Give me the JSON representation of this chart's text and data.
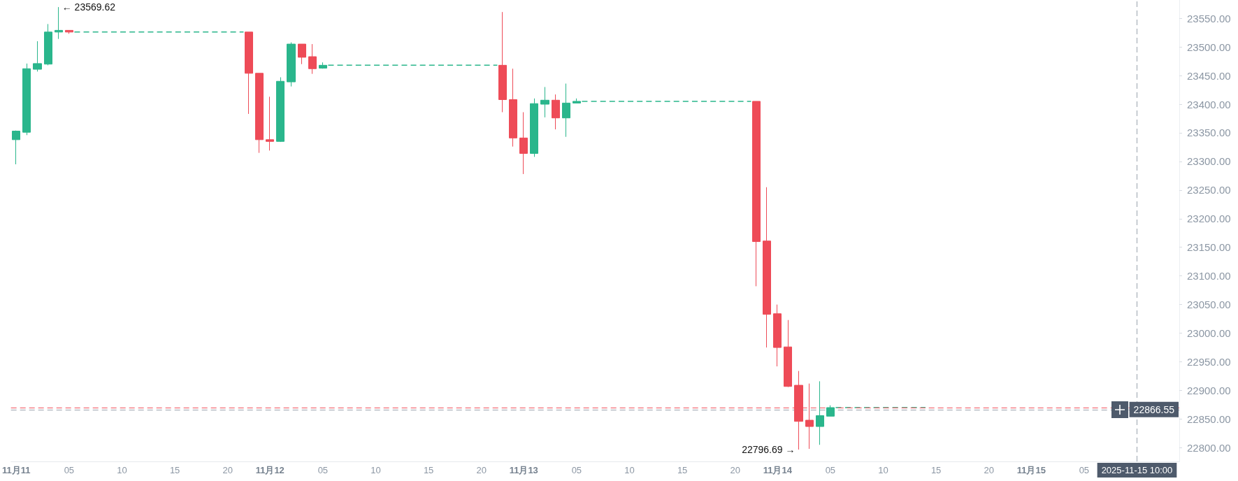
{
  "chart_data": {
    "type": "candlestick",
    "x": [
      "2025-11-11T00:00",
      "2025-11-11T01:00",
      "2025-11-11T02:00",
      "2025-11-11T03:00",
      "2025-11-11T04:00",
      "2025-11-11T05:00",
      "2025-11-11T22:00",
      "2025-11-11T23:00",
      "2025-11-12T00:00",
      "2025-11-12T01:00",
      "2025-11-12T02:00",
      "2025-11-12T03:00",
      "2025-11-12T04:00",
      "2025-11-12T05:00",
      "2025-11-12T22:00",
      "2025-11-12T23:00",
      "2025-11-13T00:00",
      "2025-11-13T01:00",
      "2025-11-13T02:00",
      "2025-11-13T03:00",
      "2025-11-13T04:00",
      "2025-11-13T05:00",
      "2025-11-13T22:00",
      "2025-11-13T23:00",
      "2025-11-14T00:00",
      "2025-11-14T01:00",
      "2025-11-14T02:00",
      "2025-11-14T03:00",
      "2025-11-14T04:00",
      "2025-11-14T05:00"
    ],
    "ohlc": [
      [
        23338,
        23354,
        23295,
        23353
      ],
      [
        23351,
        23471,
        23346,
        23462
      ],
      [
        23461,
        23510,
        23457,
        23471
      ],
      [
        23470,
        23540,
        23468,
        23526
      ],
      [
        23526,
        23569.62,
        23514,
        23529
      ],
      [
        23529,
        23529,
        23523,
        23526
      ],
      [
        23526,
        23526,
        23383,
        23454
      ],
      [
        23454,
        23454,
        23315,
        23338
      ],
      [
        23338,
        23413,
        23319,
        23335
      ],
      [
        23335,
        23447,
        23334,
        23440
      ],
      [
        23439,
        23508,
        23431,
        23505
      ],
      [
        23505,
        23505,
        23470,
        23482
      ],
      [
        23483,
        23505,
        23453,
        23462
      ],
      [
        23463,
        23473,
        23462,
        23468
      ],
      [
        23468,
        23561,
        23386,
        23408
      ],
      [
        23408,
        23462,
        23326,
        23341
      ],
      [
        23341,
        23386,
        23278,
        23314
      ],
      [
        23314,
        23410,
        23308,
        23401
      ],
      [
        23400,
        23430,
        23377,
        23407
      ],
      [
        23407,
        23417,
        23356,
        23376
      ],
      [
        23376,
        23436,
        23343,
        23402
      ],
      [
        23402,
        23410,
        23402,
        23405
      ],
      [
        23405,
        23405,
        23082,
        23160
      ],
      [
        23161,
        23255,
        22975,
        23033
      ],
      [
        23034,
        23050,
        22942,
        22975
      ],
      [
        22976,
        23023,
        22906,
        22907
      ],
      [
        22909,
        22934,
        22796.69,
        22846
      ],
      [
        22848,
        22912,
        22798,
        22837
      ],
      [
        22837,
        22916,
        22805,
        22856
      ],
      [
        22855,
        22874,
        22855,
        22870
      ]
    ],
    "colors": [
      "#2ab68c",
      "#2ab68c",
      "#2ab68c",
      "#2ab68c",
      "#2ab68c",
      "#ee4b57",
      "#ee4b57",
      "#ee4b57",
      "#ee4b57",
      "#2ab68c",
      "#2ab68c",
      "#ee4b57",
      "#ee4b57",
      "#2ab68c",
      "#ee4b57",
      "#ee4b57",
      "#ee4b57",
      "#2ab68c",
      "#2ab68c",
      "#ee4b57",
      "#2ab68c",
      "#2ab68c",
      "#ee4b57",
      "#ee4b57",
      "#ee4b57",
      "#ee4b57",
      "#ee4b57",
      "#ee4b57",
      "#2ab68c",
      "#2ab68c"
    ],
    "series": [
      {
        "type": "line",
        "color": "#2ab68c",
        "x": [
          "2025-11-11T05:30",
          "2025-11-11T21:30"
        ],
        "values": [
          23526,
          23526
        ]
      },
      {
        "type": "line",
        "color": "#2ab68c",
        "x": [
          "2025-11-12T05:30",
          "2025-11-12T21:30"
        ],
        "values": [
          23468,
          23468
        ]
      },
      {
        "type": "line",
        "color": "#2ab68c",
        "x": [
          "2025-11-13T05:30",
          "2025-11-13T21:30"
        ],
        "values": [
          23405,
          23405
        ]
      },
      {
        "type": "line",
        "color": "#2ab68c",
        "x": [
          "2025-11-14T05:30",
          "2025-11-14T14:00"
        ],
        "values": [
          22870,
          22870
        ]
      }
    ],
    "line_style": "dashed",
    "marker": "none",
    "xlim": [
      "2025-11-10T23:30",
      "2025-11-15T14:00"
    ],
    "xticks": [
      {
        "value": "2025-11-11T00:00",
        "label": "11月11"
      },
      {
        "value": "2025-11-11T05:00",
        "label": "05"
      },
      {
        "value": "2025-11-11T10:00",
        "label": "10"
      },
      {
        "value": "2025-11-11T15:00",
        "label": "15"
      },
      {
        "value": "2025-11-11T20:00",
        "label": "20"
      },
      {
        "value": "2025-11-12T00:00",
        "label": "11月12"
      },
      {
        "value": "2025-11-12T05:00",
        "label": "05"
      },
      {
        "value": "2025-11-12T10:00",
        "label": "10"
      },
      {
        "value": "2025-11-12T15:00",
        "label": "15"
      },
      {
        "value": "2025-11-12T20:00",
        "label": "20"
      },
      {
        "value": "2025-11-13T00:00",
        "label": "11月13"
      },
      {
        "value": "2025-11-13T05:00",
        "label": "05"
      },
      {
        "value": "2025-11-13T10:00",
        "label": "10"
      },
      {
        "value": "2025-11-13T15:00",
        "label": "15"
      },
      {
        "value": "2025-11-13T20:00",
        "label": "20"
      },
      {
        "value": "2025-11-14T00:00",
        "label": "11月14"
      },
      {
        "value": "2025-11-14T05:00",
        "label": "05"
      },
      {
        "value": "2025-11-14T10:00",
        "label": "10"
      },
      {
        "value": "2025-11-14T15:00",
        "label": "15"
      },
      {
        "value": "2025-11-14T20:00",
        "label": "20"
      },
      {
        "value": "2025-11-15T00:00",
        "label": "11月15"
      },
      {
        "value": "2025-11-15T05:00",
        "label": "05"
      }
    ],
    "ylim": [
      22776,
      23582
    ],
    "yticks": [
      {
        "value": 22800,
        "label": "22800.00"
      },
      {
        "value": 22850,
        "label": "22850.00"
      },
      {
        "value": 22900,
        "label": "22900.00"
      },
      {
        "value": 22950,
        "label": "22950.00"
      },
      {
        "value": 23000,
        "label": "23000.00"
      },
      {
        "value": 23050,
        "label": "23050.00"
      },
      {
        "value": 23100,
        "label": "23100.00"
      },
      {
        "value": 23150,
        "label": "23150.00"
      },
      {
        "value": 23200,
        "label": "23200.00"
      },
      {
        "value": 23250,
        "label": "23250.00"
      },
      {
        "value": 23300,
        "label": "23300.00"
      },
      {
        "value": 23350,
        "label": "23350.00"
      },
      {
        "value": 23400,
        "label": "23400.00"
      },
      {
        "value": 23450,
        "label": "23450.00"
      },
      {
        "value": 23500,
        "label": "23500.00"
      },
      {
        "value": 23550,
        "label": "23550.00"
      }
    ],
    "ref_lines": [
      {
        "axis": "y",
        "value": 22870,
        "color": "#f0505a",
        "line_style": "dashed"
      },
      {
        "axis": "y",
        "value": 22866.55,
        "label": "22866.55",
        "color": "#9aa3ad",
        "line_style": "dashed"
      },
      {
        "axis": "x",
        "value": "2025-11-15T10:00",
        "label": "2025-11-15 10:00",
        "color": "#9aa3ad",
        "line_style": "dashed"
      }
    ],
    "annotations": [
      {
        "text": "← 23569.62",
        "x": "2025-11-11T04:00",
        "y": 23569.62
      },
      {
        "text": "22796.69 →",
        "x": "2025-11-14T02:00",
        "y": 22796.69
      }
    ]
  }
}
